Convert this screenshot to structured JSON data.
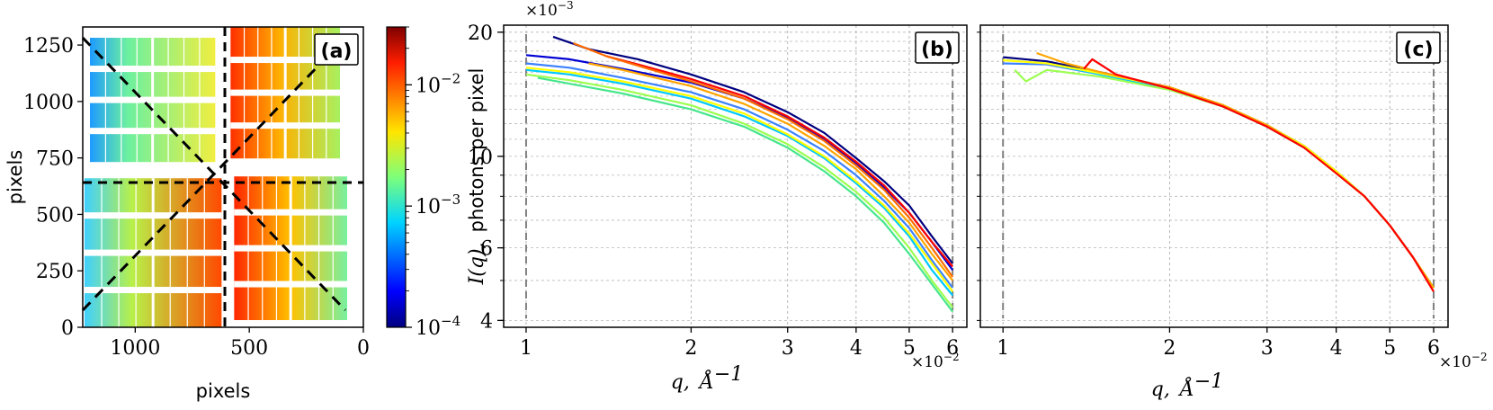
{
  "chart_data": [
    {
      "panel": "(a)",
      "type": "heatmap",
      "xlabel": "pixels",
      "ylabel": "pixels",
      "x_ticks": [
        "1000",
        "500",
        "0"
      ],
      "x_tick_values": [
        1000,
        500,
        0
      ],
      "xlim": [
        1230,
        0
      ],
      "y_ticks": [
        "0",
        "250",
        "500",
        "750",
        "1000",
        "1250"
      ],
      "y_tick_values": [
        0,
        250,
        500,
        750,
        1000,
        1250
      ],
      "ylim": [
        0,
        1330
      ],
      "center": [
        590,
        700
      ],
      "colorbar": {
        "scale": "log",
        "range": [
          0.0001,
          0.03
        ],
        "tick_labels": [
          "10^-4",
          "10^-3",
          "10^-2"
        ],
        "tick_values": [
          0.0001,
          0.001,
          0.01
        ],
        "colormap": "jet"
      },
      "quadrant_intensity": [
        {
          "quadrant": "upper-left",
          "left_edge": 0.0009,
          "right_edge": 0.003
        },
        {
          "quadrant": "upper-right",
          "left_edge": 0.025,
          "right_edge": 0.002
        },
        {
          "quadrant": "lower-left",
          "left_edge": 0.0012,
          "right_edge": 0.022
        },
        {
          "quadrant": "lower-right",
          "left_edge": 0.02,
          "right_edge": 0.0015
        }
      ]
    },
    {
      "panel": "(b)",
      "type": "line",
      "xscale": "log",
      "yscale": "log",
      "xlim": [
        0.0091,
        0.0637
      ],
      "ylim": [
        0.00385,
        0.0208
      ],
      "x_ticks": [
        "1",
        "2",
        "3",
        "4",
        "5",
        "6"
      ],
      "x_tick_values": [
        0.01,
        0.02,
        0.03,
        0.04,
        0.05,
        0.06
      ],
      "x_multiplier": "×10",
      "x_multiplier_exp": "−2",
      "y_ticks": [
        "4",
        "6",
        "10",
        "20"
      ],
      "y_tick_values": [
        0.004,
        0.006,
        0.01,
        0.02
      ],
      "y_multiplier": "×10",
      "y_multiplier_exp": "−3",
      "xlabel_main": "q,",
      "xlabel_unit": "Å",
      "xlabel_exp": "−1",
      "ylabel_main": "I(q),",
      "ylabel_rest": "photons per pixel",
      "vlines": [
        0.01,
        0.06
      ],
      "grid": true,
      "series": [
        {
          "color": "#00007f",
          "x": [
            0.0112,
            0.013,
            0.016,
            0.02,
            0.025,
            0.03,
            0.035,
            0.04,
            0.045,
            0.05,
            0.055,
            0.06
          ],
          "y": [
            0.0195,
            0.0182,
            0.0172,
            0.0158,
            0.0143,
            0.0128,
            0.0114,
            0.0099,
            0.0087,
            0.0076,
            0.0064,
            0.0055
          ]
        },
        {
          "color": "#0000d4",
          "x": [
            0.01,
            0.012,
            0.015,
            0.02,
            0.025,
            0.03,
            0.035,
            0.04,
            0.045,
            0.05,
            0.055,
            0.06
          ],
          "y": [
            0.0176,
            0.0172,
            0.0163,
            0.0151,
            0.0138,
            0.0124,
            0.011,
            0.0096,
            0.0084,
            0.0073,
            0.0062,
            0.0053
          ]
        },
        {
          "color": "#ff0000",
          "x": [
            0.014,
            0.016,
            0.02,
            0.025,
            0.03,
            0.035,
            0.04,
            0.045,
            0.05,
            0.055,
            0.06
          ],
          "y": [
            0.0175,
            0.0167,
            0.0154,
            0.014,
            0.0125,
            0.0111,
            0.0097,
            0.0085,
            0.0073,
            0.0062,
            0.0054
          ]
        },
        {
          "color": "#ff6a00",
          "x": [
            0.0122,
            0.014,
            0.017,
            0.02,
            0.025,
            0.03,
            0.035,
            0.04,
            0.045,
            0.05,
            0.055,
            0.06
          ],
          "y": [
            0.0188,
            0.0175,
            0.0162,
            0.0152,
            0.0138,
            0.0123,
            0.0109,
            0.0095,
            0.0083,
            0.0071,
            0.006,
            0.0051
          ]
        },
        {
          "color": "#ffa500",
          "x": [
            0.013,
            0.015,
            0.02,
            0.025,
            0.03,
            0.035,
            0.04,
            0.045,
            0.05,
            0.055,
            0.06
          ],
          "y": [
            0.0168,
            0.0162,
            0.0148,
            0.0134,
            0.012,
            0.0106,
            0.0093,
            0.008,
            0.0069,
            0.0058,
            0.005
          ]
        },
        {
          "color": "#3b82ff",
          "x": [
            0.01,
            0.012,
            0.015,
            0.02,
            0.025,
            0.03,
            0.035,
            0.04,
            0.045,
            0.05,
            0.055,
            0.06
          ],
          "y": [
            0.0168,
            0.0164,
            0.0155,
            0.0143,
            0.013,
            0.0116,
            0.0103,
            0.009,
            0.0078,
            0.0067,
            0.0056,
            0.0048
          ]
        },
        {
          "color": "#00c8ff",
          "x": [
            0.01,
            0.012,
            0.015,
            0.02,
            0.025,
            0.03,
            0.035,
            0.04,
            0.045,
            0.05,
            0.055,
            0.06
          ],
          "y": [
            0.0162,
            0.0158,
            0.015,
            0.0138,
            0.0125,
            0.0112,
            0.0099,
            0.0086,
            0.0075,
            0.0064,
            0.0053,
            0.0046
          ]
        },
        {
          "color": "#ffff00",
          "x": [
            0.01,
            0.012,
            0.015,
            0.02,
            0.025,
            0.03,
            0.035,
            0.04,
            0.045,
            0.05,
            0.055,
            0.06
          ],
          "y": [
            0.0164,
            0.016,
            0.0152,
            0.014,
            0.0127,
            0.0113,
            0.01,
            0.0087,
            0.0076,
            0.0065,
            0.0055,
            0.0047
          ]
        },
        {
          "color": "#9cff50",
          "x": [
            0.01,
            0.012,
            0.015,
            0.02,
            0.025,
            0.03,
            0.035,
            0.04,
            0.045,
            0.05,
            0.055,
            0.06
          ],
          "y": [
            0.0158,
            0.0153,
            0.0145,
            0.0133,
            0.012,
            0.0107,
            0.0094,
            0.0082,
            0.0071,
            0.006,
            0.005,
            0.0043
          ]
        },
        {
          "color": "#46e68c",
          "x": [
            0.0105,
            0.012,
            0.015,
            0.02,
            0.025,
            0.03,
            0.035,
            0.04,
            0.045,
            0.05,
            0.055,
            0.06
          ],
          "y": [
            0.0155,
            0.015,
            0.0142,
            0.013,
            0.0118,
            0.0105,
            0.0092,
            0.008,
            0.0069,
            0.0058,
            0.0049,
            0.0042
          ]
        }
      ]
    },
    {
      "panel": "(c)",
      "type": "line",
      "xscale": "log",
      "yscale": "log",
      "xlim": [
        0.0091,
        0.0637
      ],
      "ylim": [
        0.00385,
        0.0208
      ],
      "x_ticks": [
        "1",
        "2",
        "3",
        "4",
        "5",
        "6"
      ],
      "x_tick_values": [
        0.01,
        0.02,
        0.03,
        0.04,
        0.05,
        0.06
      ],
      "x_multiplier": "×10",
      "x_multiplier_exp": "−2",
      "xlabel_main": "q,",
      "xlabel_unit": "Å",
      "xlabel_exp": "−1",
      "vlines": [
        0.01,
        0.06
      ],
      "grid": true,
      "series": [
        {
          "color": "#00007f",
          "x": [
            0.01,
            0.012,
            0.015,
            0.02,
            0.025,
            0.03,
            0.035,
            0.04,
            0.045,
            0.05,
            0.055,
            0.06
          ],
          "y": [
            0.0174,
            0.017,
            0.016,
            0.0147,
            0.0133,
            0.0119,
            0.0106,
            0.0092,
            0.008,
            0.0068,
            0.0057,
            0.0048
          ]
        },
        {
          "color": "#3b82ff",
          "x": [
            0.01,
            0.012,
            0.015,
            0.02,
            0.025,
            0.03,
            0.035,
            0.04,
            0.045,
            0.05,
            0.055,
            0.06
          ],
          "y": [
            0.0168,
            0.0167,
            0.0158,
            0.0146,
            0.0132,
            0.0118,
            0.0105,
            0.0091,
            0.008,
            0.0068,
            0.0057,
            0.0048
          ]
        },
        {
          "color": "#00c8ff",
          "x": [
            0.0125,
            0.015,
            0.02,
            0.025,
            0.03,
            0.035,
            0.04,
            0.045,
            0.05,
            0.055,
            0.06
          ],
          "y": [
            0.0166,
            0.0158,
            0.0146,
            0.0132,
            0.0118,
            0.0105,
            0.0091,
            0.008,
            0.0068,
            0.0057,
            0.0048
          ]
        },
        {
          "color": "#9cff50",
          "x": [
            0.0105,
            0.011,
            0.012,
            0.015,
            0.02,
            0.025,
            0.03,
            0.035,
            0.04,
            0.045,
            0.05,
            0.055,
            0.06
          ],
          "y": [
            0.0162,
            0.0152,
            0.0162,
            0.0156,
            0.0145,
            0.0132,
            0.0118,
            0.0105,
            0.0091,
            0.008,
            0.0068,
            0.0057,
            0.0048
          ]
        },
        {
          "color": "#ffff00",
          "x": [
            0.01,
            0.012,
            0.015,
            0.02,
            0.025,
            0.03,
            0.035,
            0.04,
            0.045,
            0.05,
            0.055,
            0.06
          ],
          "y": [
            0.0171,
            0.0168,
            0.0159,
            0.0147,
            0.0133,
            0.0119,
            0.0106,
            0.0092,
            0.008,
            0.0068,
            0.0057,
            0.0048
          ]
        },
        {
          "color": "#ffa500",
          "x": [
            0.0115,
            0.013,
            0.015,
            0.02,
            0.025,
            0.03,
            0.035,
            0.04,
            0.045,
            0.05,
            0.055,
            0.06
          ],
          "y": [
            0.0178,
            0.0168,
            0.016,
            0.0147,
            0.0133,
            0.0119,
            0.0105,
            0.0091,
            0.008,
            0.0068,
            0.0057,
            0.0048
          ]
        },
        {
          "color": "#ff0000",
          "x": [
            0.014,
            0.0145,
            0.016,
            0.02,
            0.025,
            0.03,
            0.035,
            0.04,
            0.045,
            0.05,
            0.055,
            0.06
          ],
          "y": [
            0.0163,
            0.0172,
            0.0158,
            0.0146,
            0.0132,
            0.0118,
            0.0105,
            0.0091,
            0.008,
            0.0068,
            0.0057,
            0.0047
          ]
        }
      ]
    }
  ]
}
